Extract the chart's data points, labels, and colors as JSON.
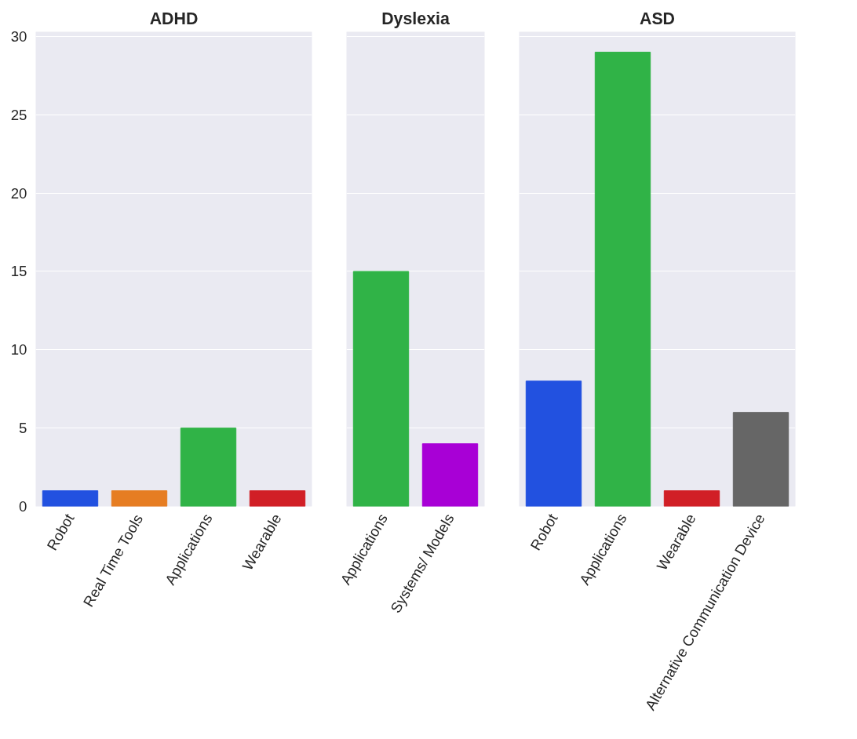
{
  "chart_data": [
    {
      "type": "bar",
      "title": "ADHD",
      "categories": [
        "Robot",
        "Real Time Tools",
        "Applications",
        "Wearable"
      ],
      "values": [
        1,
        1,
        5,
        1
      ],
      "colors": [
        "#2251e0",
        "#e67d22",
        "#30b347",
        "#d11f26"
      ],
      "ylim": [
        0,
        30.3
      ],
      "yticks": [
        0,
        5,
        10,
        15,
        20,
        25,
        30
      ],
      "grid": "y"
    },
    {
      "type": "bar",
      "title": "Dyslexia",
      "categories": [
        "Applications",
        "Systems/ Models"
      ],
      "values": [
        15,
        4
      ],
      "colors": [
        "#30b347",
        "#a800d6"
      ],
      "ylim": [
        0,
        30.3
      ],
      "yticks": [
        0,
        5,
        10,
        15,
        20,
        25,
        30
      ],
      "grid": "y",
      "tick_labels": "x"
    },
    {
      "type": "bar",
      "title": "ASD",
      "categories": [
        "Robot",
        "Applications",
        "Wearable",
        "Alternative Communication Device"
      ],
      "values": [
        8,
        29,
        1,
        6
      ],
      "colors": [
        "#2251e0",
        "#30b347",
        "#d11f26",
        "#666666"
      ],
      "ylim": [
        0,
        30.3
      ],
      "yticks": [
        0,
        5,
        10,
        15,
        20,
        25,
        30
      ],
      "grid": "y",
      "tick_labels": "x"
    }
  ]
}
